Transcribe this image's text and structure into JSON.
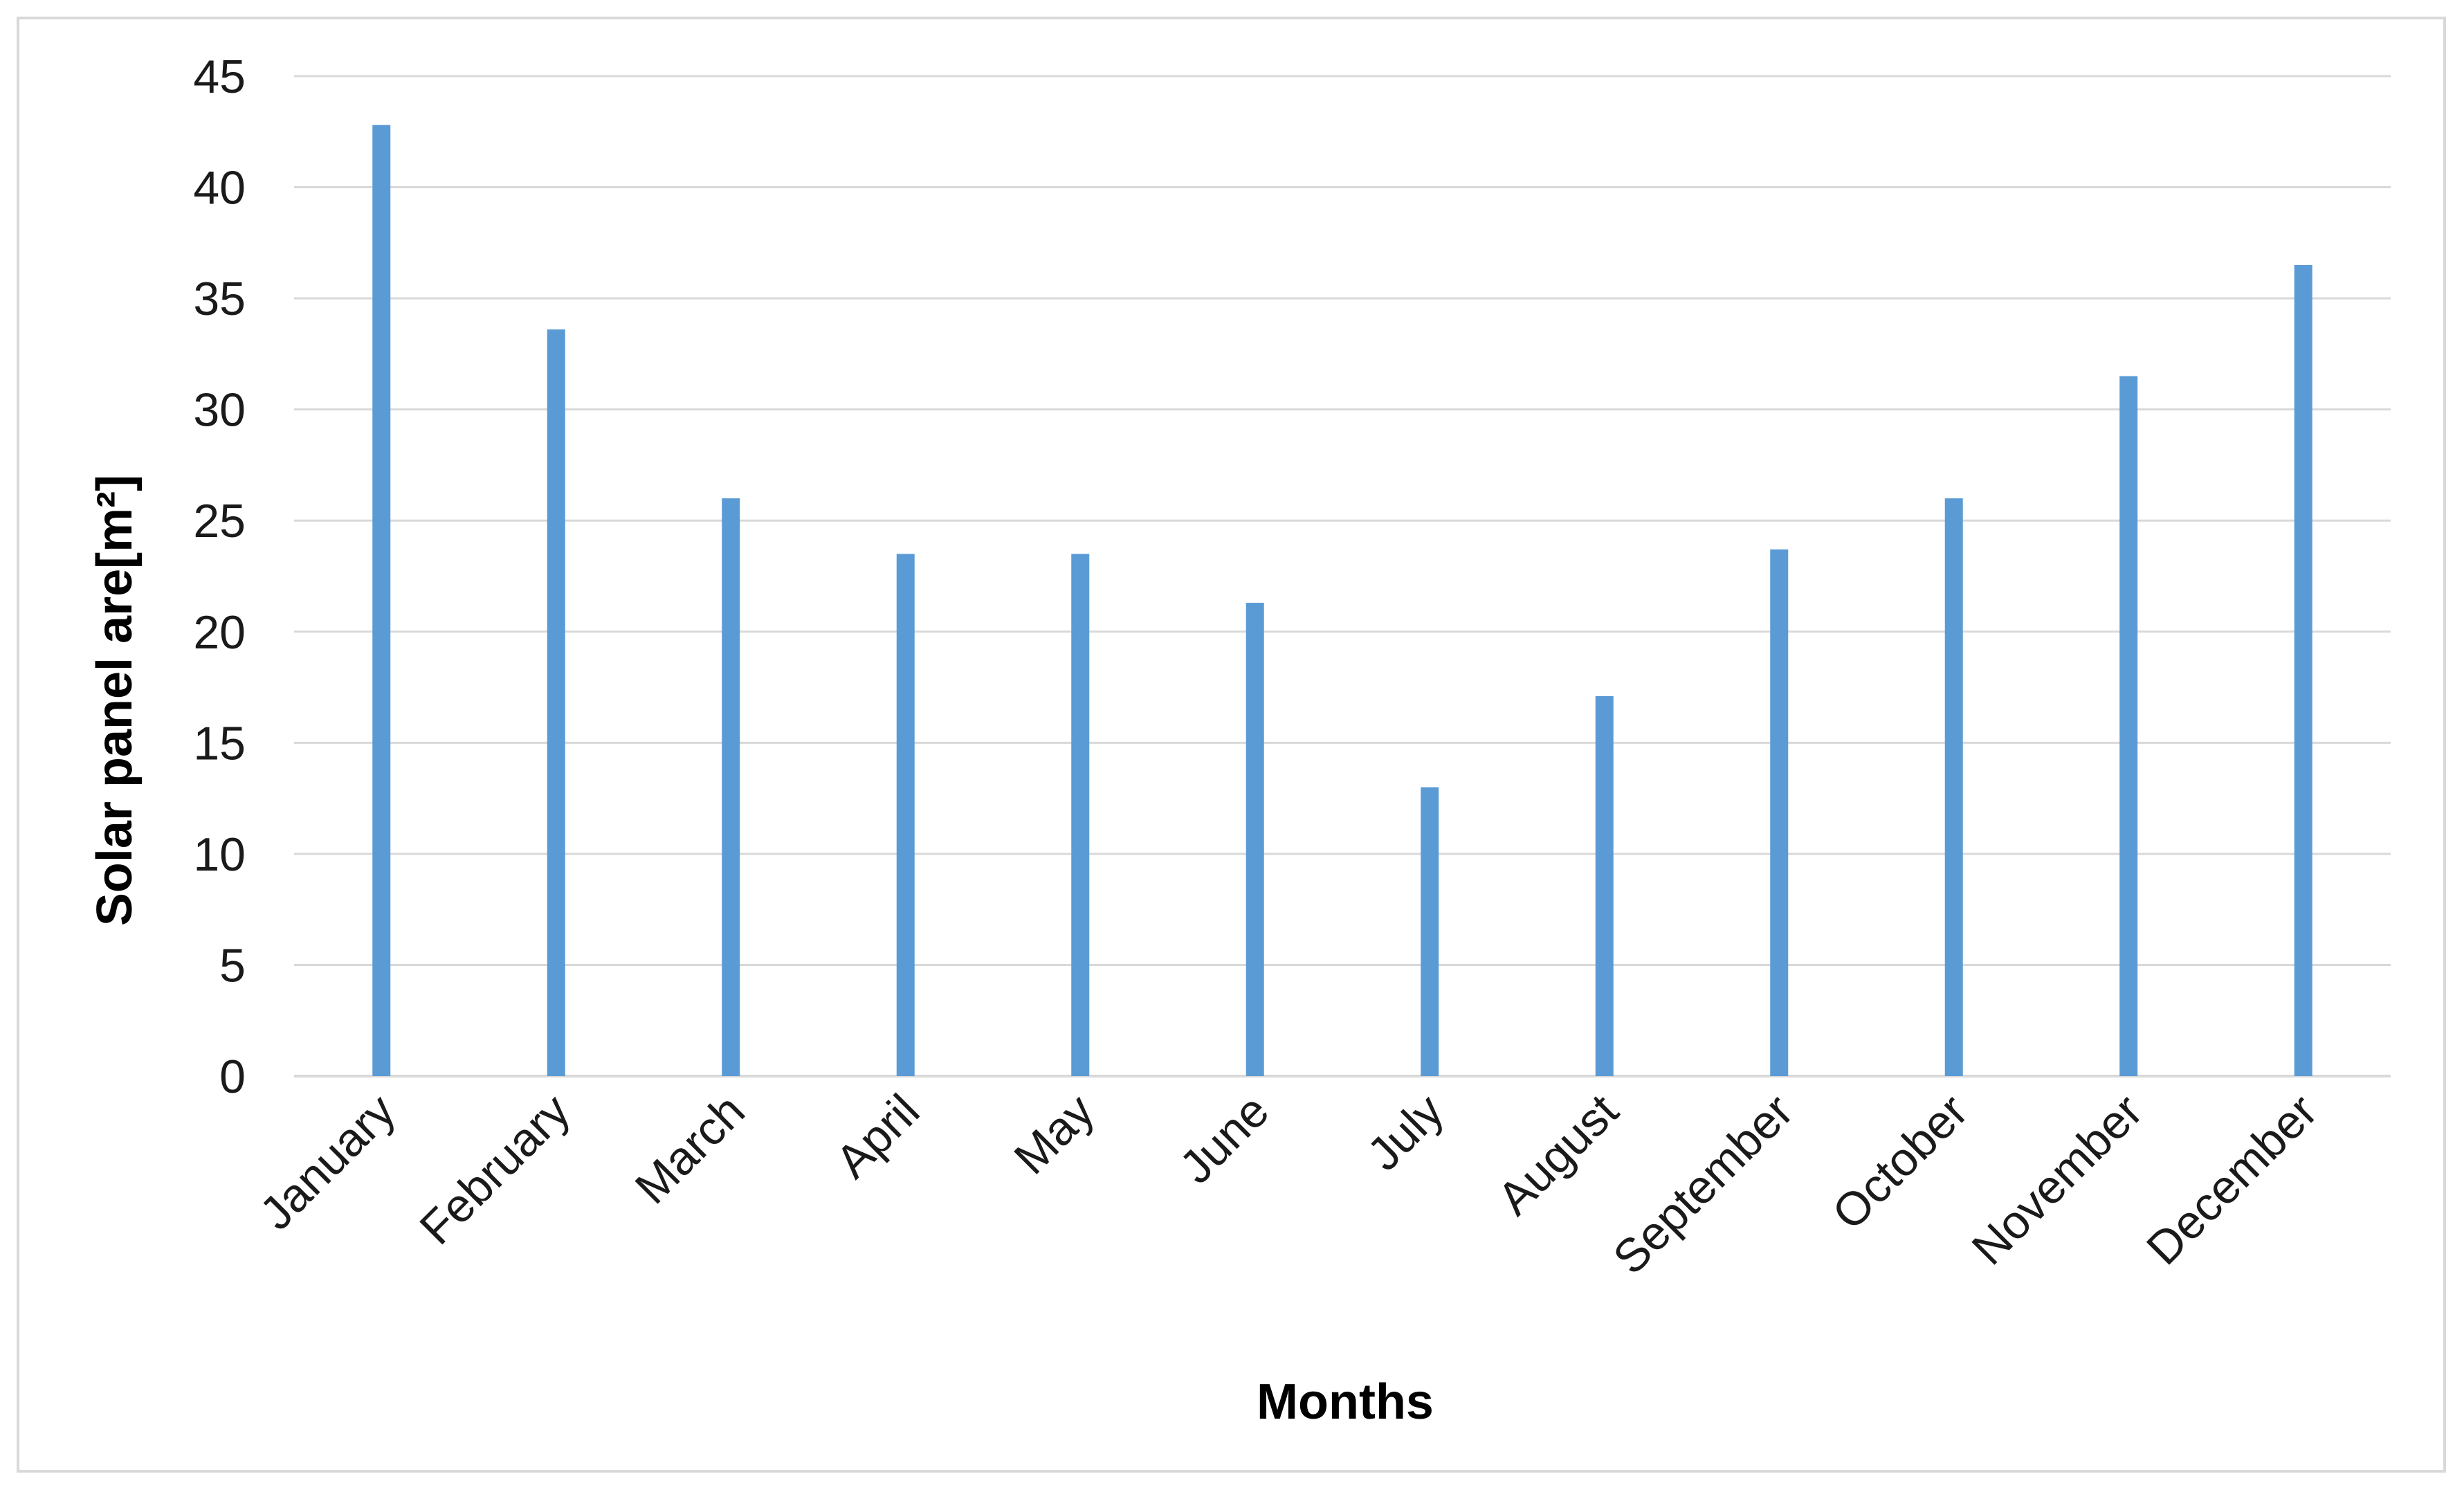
{
  "chart_data": {
    "type": "bar",
    "title": "",
    "xlabel": "Months",
    "ylabel": "Solar panel are[m²]",
    "ylim": [
      0,
      45
    ],
    "y_ticks": [
      0,
      5,
      10,
      15,
      20,
      25,
      30,
      35,
      40,
      45
    ],
    "grid": true,
    "legend": "none",
    "categories": [
      "January",
      "February",
      "March",
      "April",
      "May",
      "June",
      "July",
      "August",
      "September",
      "October",
      "November",
      "December"
    ],
    "values": [
      42.8,
      33.6,
      26.0,
      23.5,
      23.5,
      21.3,
      13.0,
      17.1,
      23.7,
      26.0,
      31.5,
      36.5
    ],
    "colors": {
      "bar": "#5b9bd5",
      "grid": "#d9d9d9",
      "axis": "#d9d9d9"
    }
  }
}
